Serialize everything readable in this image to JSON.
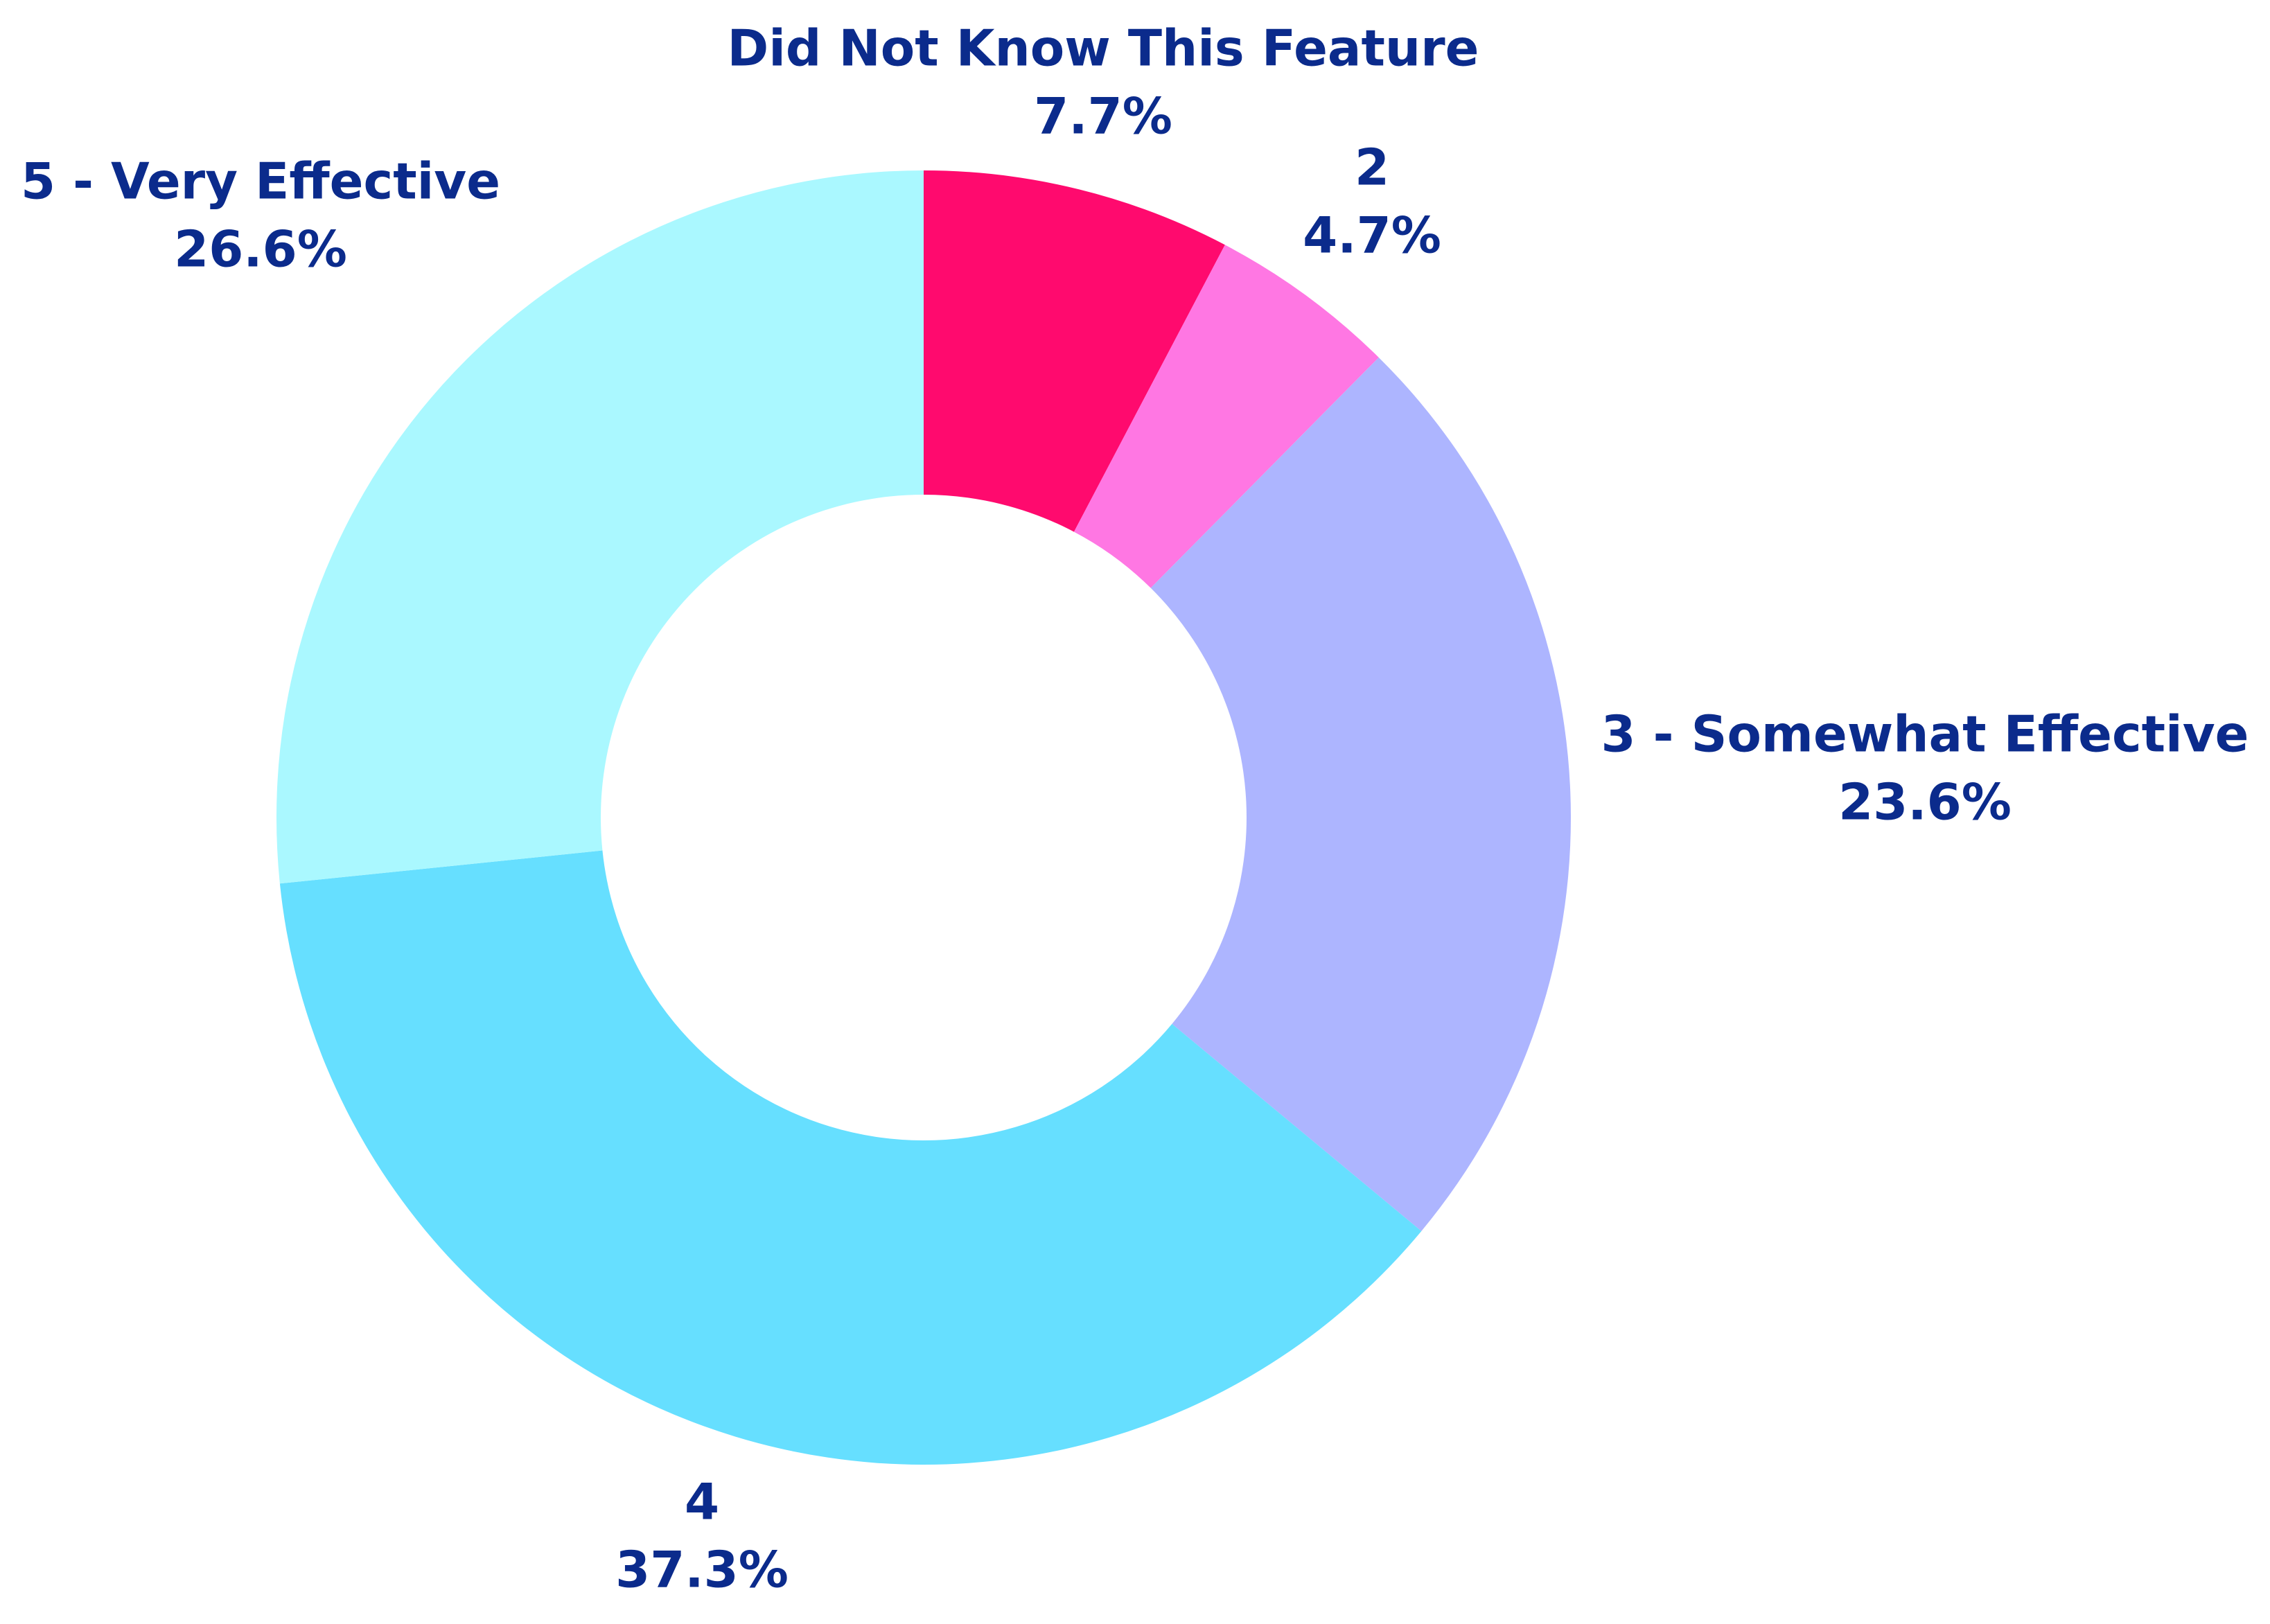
{
  "chart_data": {
    "type": "pie",
    "categories": [
      "Did Not Know This Feature",
      "2",
      "3 - Somewhat Effective",
      "4",
      "5 - Very Effective"
    ],
    "values": [
      7.7,
      4.7,
      23.6,
      37.3,
      26.6
    ],
    "value_labels": [
      "7.7%",
      "4.7%",
      "23.6%",
      "37.3%",
      "26.6%"
    ],
    "colors": [
      "#ff0a6e",
      "#ff77e3",
      "#adb5ff",
      "#66dfff",
      "#aaf8ff"
    ]
  }
}
